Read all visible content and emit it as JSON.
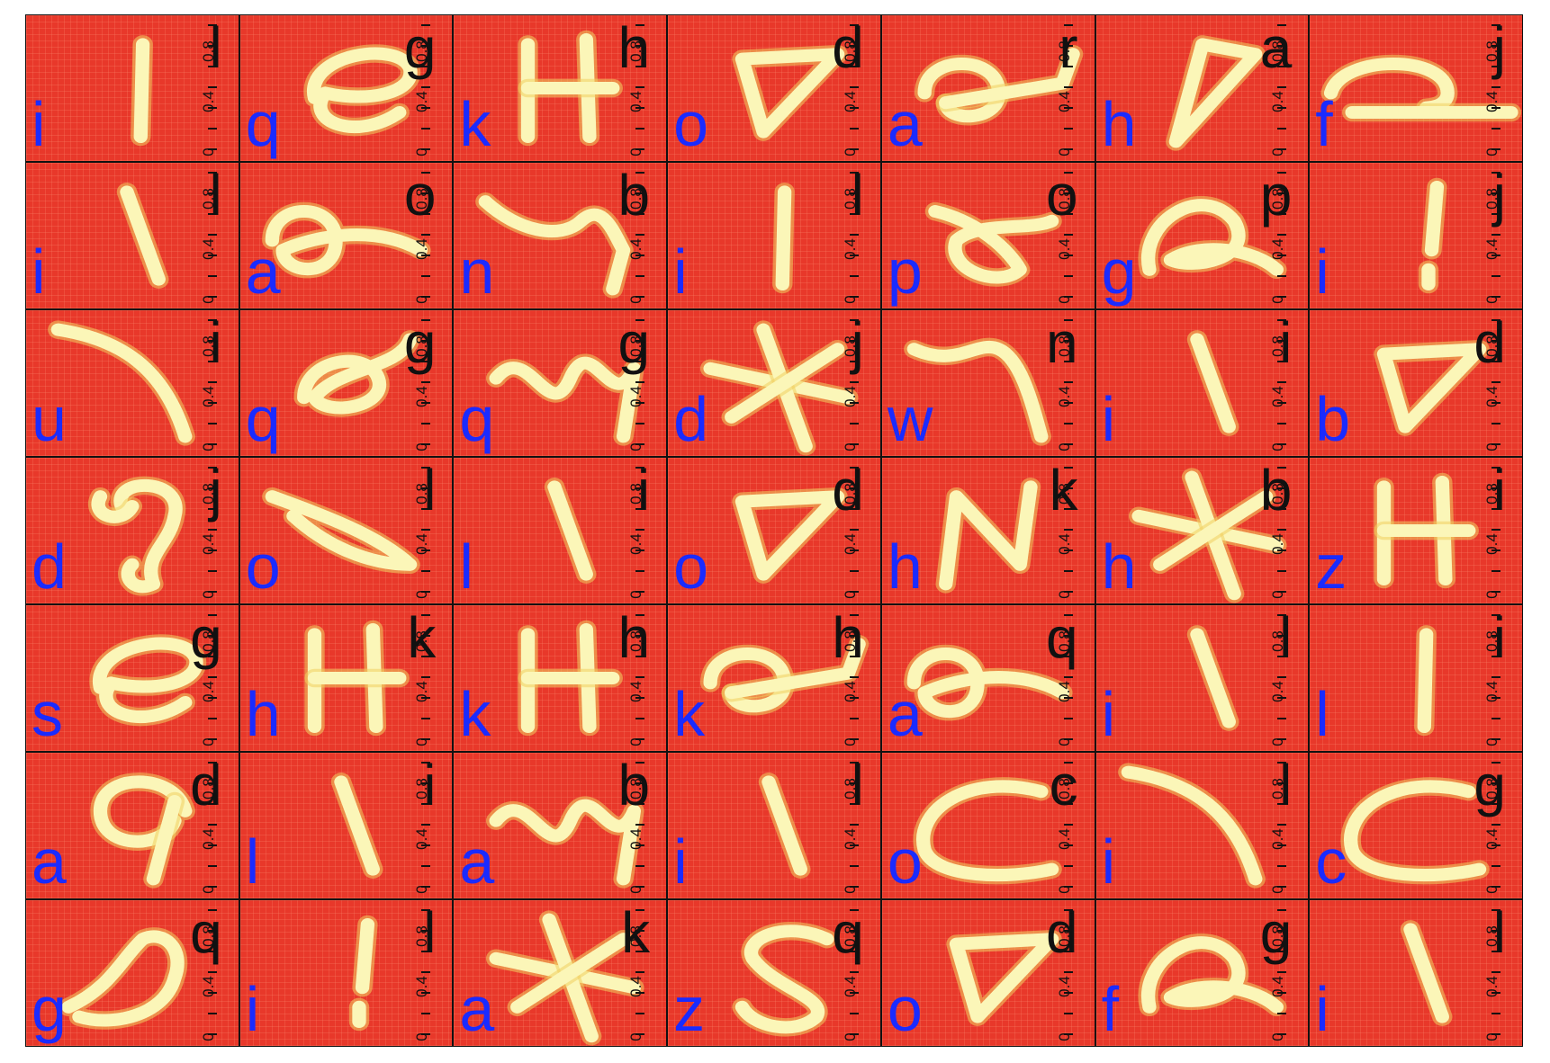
{
  "axis_tick_labels": [
    "0",
    "0.4",
    "0.8"
  ],
  "colors": {
    "panel": "#e8382a",
    "stroke": "#fbf6b8",
    "true_label": "#1a2bff",
    "pred_label": "#111111"
  },
  "cells": [
    {
      "true": "i",
      "pred": "l",
      "glyph": "stroke-vertical"
    },
    {
      "true": "q",
      "pred": "g",
      "glyph": "loop-e"
    },
    {
      "true": "k",
      "pred": "h",
      "glyph": "letter-h"
    },
    {
      "true": "o",
      "pred": "d",
      "glyph": "triangle"
    },
    {
      "true": "a",
      "pred": "r",
      "glyph": "curl-r"
    },
    {
      "true": "h",
      "pred": "a",
      "glyph": "letter-a"
    },
    {
      "true": "f",
      "pred": "j",
      "glyph": "hook-line"
    },
    {
      "true": "i",
      "pred": "l",
      "glyph": "stroke-slant"
    },
    {
      "true": "a",
      "pred": "o",
      "glyph": "loop-o"
    },
    {
      "true": "n",
      "pred": "b",
      "glyph": "wave-b"
    },
    {
      "true": "i",
      "pred": "l",
      "glyph": "stroke-vertical"
    },
    {
      "true": "p",
      "pred": "o",
      "glyph": "fish"
    },
    {
      "true": "g",
      "pred": "p",
      "glyph": "loop-p"
    },
    {
      "true": "i",
      "pred": "j",
      "glyph": "exclaim"
    },
    {
      "true": "u",
      "pred": "i",
      "glyph": "curve-u"
    },
    {
      "true": "q",
      "pred": "g",
      "glyph": "knot"
    },
    {
      "true": "q",
      "pred": "g",
      "glyph": "zigzag"
    },
    {
      "true": "d",
      "pred": "j",
      "glyph": "cross"
    },
    {
      "true": "w",
      "pred": "n",
      "glyph": "wave-n"
    },
    {
      "true": "i",
      "pred": "i",
      "glyph": "stroke-slant"
    },
    {
      "true": "b",
      "pred": "d",
      "glyph": "triangle"
    },
    {
      "true": "d",
      "pred": "j",
      "glyph": "spiral"
    },
    {
      "true": "o",
      "pred": "l",
      "glyph": "leaf"
    },
    {
      "true": "l",
      "pred": "i",
      "glyph": "stroke-slant"
    },
    {
      "true": "o",
      "pred": "d",
      "glyph": "triangle"
    },
    {
      "true": "h",
      "pred": "k",
      "glyph": "letter-n"
    },
    {
      "true": "h",
      "pred": "b",
      "glyph": "cross"
    },
    {
      "true": "z",
      "pred": "i",
      "glyph": "letter-h"
    },
    {
      "true": "s",
      "pred": "g",
      "glyph": "loop-e"
    },
    {
      "true": "h",
      "pred": "k",
      "glyph": "letter-h"
    },
    {
      "true": "k",
      "pred": "h",
      "glyph": "letter-h"
    },
    {
      "true": "k",
      "pred": "h",
      "glyph": "curl-r"
    },
    {
      "true": "a",
      "pred": "q",
      "glyph": "loop-o"
    },
    {
      "true": "i",
      "pred": "l",
      "glyph": "stroke-slant"
    },
    {
      "true": "l",
      "pred": "i",
      "glyph": "stroke-vertical"
    },
    {
      "true": "a",
      "pred": "d",
      "glyph": "loop-q"
    },
    {
      "true": "l",
      "pred": "i",
      "glyph": "stroke-slant"
    },
    {
      "true": "a",
      "pred": "b",
      "glyph": "zigzag"
    },
    {
      "true": "i",
      "pred": "l",
      "glyph": "stroke-slant"
    },
    {
      "true": "o",
      "pred": "c",
      "glyph": "letter-c"
    },
    {
      "true": "i",
      "pred": "l",
      "glyph": "curve-u"
    },
    {
      "true": "c",
      "pred": "g",
      "glyph": "letter-c"
    },
    {
      "true": "g",
      "pred": "q",
      "glyph": "blob"
    },
    {
      "true": "i",
      "pred": "l",
      "glyph": "exclaim"
    },
    {
      "true": "a",
      "pred": "k",
      "glyph": "cross"
    },
    {
      "true": "z",
      "pred": "q",
      "glyph": "letter-s"
    },
    {
      "true": "o",
      "pred": "d",
      "glyph": "triangle"
    },
    {
      "true": "f",
      "pred": "g",
      "glyph": "loop-p"
    },
    {
      "true": "i",
      "pred": "l",
      "glyph": "stroke-slant"
    }
  ]
}
